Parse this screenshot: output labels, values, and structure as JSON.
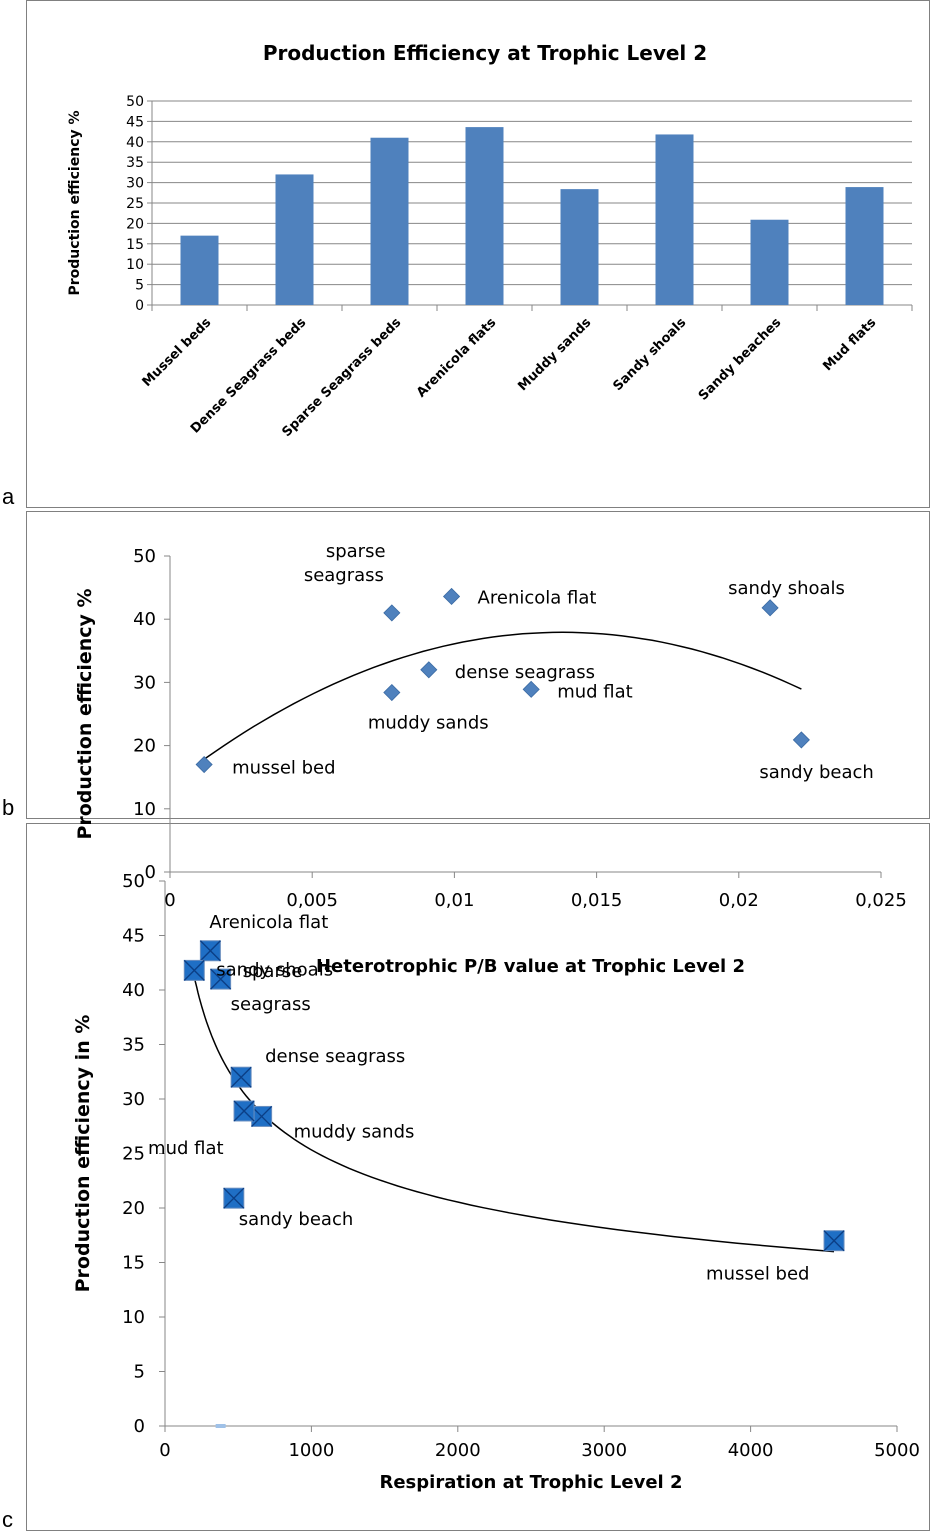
{
  "panel_letters": [
    "a",
    "b",
    "c"
  ],
  "chart_data": [
    {
      "type": "bar",
      "title": "Production Efficiency at Trophic Level 2",
      "xlabel": "",
      "ylabel": "Production efficiency  %",
      "categories": [
        "Mussel beds",
        "Dense Seagrass beds",
        "Sparse Seagrass beds",
        "Arenicola flats",
        "Muddy sands",
        "Sandy shoals",
        "Sandy beaches",
        "Mud flats"
      ],
      "values": [
        17,
        32,
        41,
        43.6,
        28.4,
        41.8,
        20.9,
        28.9
      ],
      "ylim": [
        0,
        50
      ],
      "yticks": [
        "0",
        "5",
        "10",
        "15",
        "20",
        "25",
        "30",
        "35",
        "40",
        "45",
        "50"
      ],
      "grid": true,
      "colors": {
        "bar": "#4F81BD"
      }
    },
    {
      "type": "scatter",
      "title": "",
      "xlabel": "Heterotrophic P/B value at Trophic Level 2",
      "ylabel": "Production efficiency %",
      "xlim": [
        0,
        0.025
      ],
      "ylim": [
        0,
        50
      ],
      "xticks": [
        "0",
        "0,005",
        "0,01",
        "0,015",
        "0,02",
        "0,025"
      ],
      "yticks": [
        "0",
        "10",
        "20",
        "30",
        "40",
        "50"
      ],
      "grid": false,
      "trendline": "polynomial",
      "colors": {
        "marker": "#4F81BD",
        "trend": "#000000"
      },
      "points": [
        {
          "x": 0.0012,
          "y": 17,
          "label": "mussel bed"
        },
        {
          "x": 0.0078,
          "y": 41,
          "label": "sparse seagrass"
        },
        {
          "x": 0.0099,
          "y": 43.6,
          "label": "Arenicola flat"
        },
        {
          "x": 0.0091,
          "y": 32,
          "label": "dense seagrass"
        },
        {
          "x": 0.0078,
          "y": 28.4,
          "label": "muddy sands"
        },
        {
          "x": 0.0127,
          "y": 28.9,
          "label": "mud flat"
        },
        {
          "x": 0.0211,
          "y": 41.8,
          "label": "sandy shoals"
        },
        {
          "x": 0.0222,
          "y": 20.9,
          "label": "sandy beach"
        }
      ]
    },
    {
      "type": "scatter",
      "title": "",
      "xlabel": "Respiration at Trophic Level 2",
      "ylabel": "Production efficiency in %",
      "xlim": [
        0,
        5000
      ],
      "ylim": [
        0,
        50
      ],
      "xticks": [
        "0",
        "1000",
        "2000",
        "3000",
        "4000",
        "5000"
      ],
      "yticks": [
        "0",
        "5",
        "10",
        "15",
        "20",
        "25",
        "30",
        "35",
        "40",
        "45",
        "50"
      ],
      "grid": false,
      "trendline": "power",
      "colors": {
        "marker": "#1F6FC5",
        "trend": "#000000"
      },
      "points": [
        {
          "x": 4570,
          "y": 17,
          "label": "mussel bed"
        },
        {
          "x": 380,
          "y": 41,
          "label": "sparse seagrass"
        },
        {
          "x": 310,
          "y": 43.6,
          "label": "Arenicola flat"
        },
        {
          "x": 520,
          "y": 32,
          "label": "dense seagrass"
        },
        {
          "x": 660,
          "y": 28.4,
          "label": "muddy sands"
        },
        {
          "x": 540,
          "y": 28.9,
          "label": "mud flat"
        },
        {
          "x": 200,
          "y": 41.8,
          "label": "sandy shoals"
        },
        {
          "x": 470,
          "y": 20.9,
          "label": "sandy beach"
        }
      ]
    }
  ]
}
